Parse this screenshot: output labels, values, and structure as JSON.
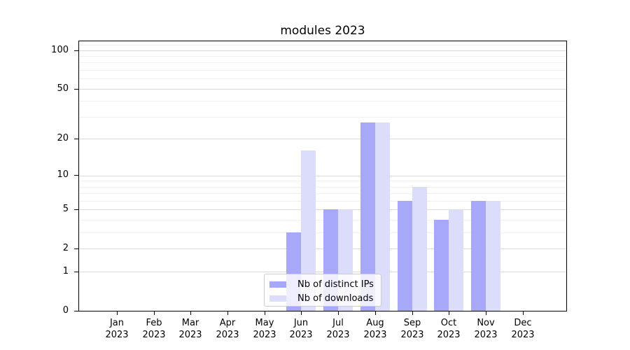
{
  "chart_data": {
    "type": "bar",
    "title": "modules 2023",
    "months": [
      "Jan",
      "Feb",
      "Mar",
      "Apr",
      "May",
      "Jun",
      "Jul",
      "Aug",
      "Sep",
      "Oct",
      "Nov",
      "Dec"
    ],
    "year_label": "2023",
    "categories": [
      "Jan 2023",
      "Feb 2023",
      "Mar 2023",
      "Apr 2023",
      "May 2023",
      "Jun 2023",
      "Jul 2023",
      "Aug 2023",
      "Sep 2023",
      "Oct 2023",
      "Nov 2023",
      "Dec 2023"
    ],
    "series": [
      {
        "name": "Nb of distinct IPs",
        "color": "#a8a8f8",
        "values": [
          0,
          0,
          0,
          0,
          0,
          3,
          5,
          27,
          6,
          4,
          6,
          0
        ]
      },
      {
        "name": "Nb of downloads",
        "color": "#dcdcfb",
        "values": [
          0,
          0,
          0,
          0,
          0,
          16,
          5,
          27,
          8,
          5,
          6,
          0
        ]
      }
    ],
    "xlabel": "",
    "ylabel": "",
    "yscale": "log1p",
    "ylim": [
      0,
      117
    ],
    "y_major_ticks": [
      0,
      1,
      2,
      5,
      10,
      20,
      50,
      100
    ],
    "y_minor_ticks": [
      3,
      4,
      6,
      7,
      8,
      9,
      30,
      40,
      60,
      70,
      80,
      90,
      110
    ],
    "grid": true,
    "legend": {
      "position": "lower center",
      "labels": [
        "Nb of distinct IPs",
        "Nb of downloads"
      ]
    },
    "layout": {
      "x_first_center_frac": 0.0776,
      "x_step_frac": 0.0757,
      "bar_width_frac": 0.0303
    },
    "colors": {
      "grid_major": "#d9d9d9",
      "grid_minor": "#f0f0f0",
      "axis": "#000000",
      "legend_border": "#cccccc",
      "background": "#ffffff"
    }
  }
}
